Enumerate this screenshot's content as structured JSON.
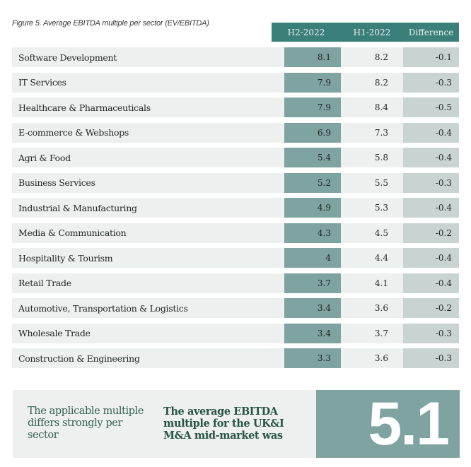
{
  "caption": "Figure 5. Average EBITDA multiple per sector (EV/EBITDA)",
  "header": {
    "h2": "H2-2022",
    "h1": "H1-2022",
    "diff": "Difference"
  },
  "colors": {
    "header_bg": "#3a7f7a",
    "h2_cell": "#7fa3a0",
    "diff_cell": "#c9d4d2",
    "row_bg": "#eef0ef",
    "panel_text": "#285445"
  },
  "rows": [
    {
      "sector": "Software Development",
      "h2": "8.1",
      "h1": "8.2",
      "diff": "-0.1"
    },
    {
      "sector": "IT Services",
      "h2": "7.9",
      "h1": "8.2",
      "diff": "-0.3"
    },
    {
      "sector": "Healthcare & Pharmaceuticals",
      "h2": "7.9",
      "h1": "8.4",
      "diff": "-0.5"
    },
    {
      "sector": "E-commerce & Webshops",
      "h2": "6.9",
      "h1": "7.3",
      "diff": "-0.4"
    },
    {
      "sector": "Agri & Food",
      "h2": "5.4",
      "h1": "5.8",
      "diff": "-0.4"
    },
    {
      "sector": "Business Services",
      "h2": "5.2",
      "h1": "5.5",
      "diff": "-0.3"
    },
    {
      "sector": "Industrial & Manufacturing",
      "h2": "4.9",
      "h1": "5.3",
      "diff": "-0.4"
    },
    {
      "sector": "Media & Communication",
      "h2": "4.3",
      "h1": "4.5",
      "diff": "-0.2"
    },
    {
      "sector": "Hospitality & Tourism",
      "h2": "4",
      "h1": "4.4",
      "diff": "-0.4"
    },
    {
      "sector": "Retail Trade",
      "h2": "3.7",
      "h1": "4.1",
      "diff": "-0.4"
    },
    {
      "sector": "Automotive, Transportation & Logistics",
      "h2": "3.4",
      "h1": "3.6",
      "diff": "-0.2"
    },
    {
      "sector": "Wholesale Trade",
      "h2": "3.4",
      "h1": "3.7",
      "diff": "-0.3"
    },
    {
      "sector": "Construction & Engineering",
      "h2": "3.3",
      "h1": "3.6",
      "diff": "-0.3"
    }
  ],
  "panel": {
    "left_text": "The applicable multiple differs strongly per sector",
    "mid_text": "The average EBITDA multiple for the UK&I M&A mid-market was",
    "value": "5.1"
  },
  "chart_data": {
    "type": "table",
    "title": "Figure 5. Average EBITDA multiple per sector (EV/EBITDA)",
    "columns": [
      "Sector",
      "H2-2022",
      "H1-2022",
      "Difference"
    ],
    "categories": [
      "Software Development",
      "IT Services",
      "Healthcare & Pharmaceuticals",
      "E-commerce & Webshops",
      "Agri & Food",
      "Business Services",
      "Industrial & Manufacturing",
      "Media & Communication",
      "Hospitality & Tourism",
      "Retail Trade",
      "Automotive, Transportation & Logistics",
      "Wholesale Trade",
      "Construction & Engineering"
    ],
    "series": [
      {
        "name": "H2-2022",
        "values": [
          8.1,
          7.9,
          7.9,
          6.9,
          5.4,
          5.2,
          4.9,
          4.3,
          4,
          3.7,
          3.4,
          3.4,
          3.3
        ]
      },
      {
        "name": "H1-2022",
        "values": [
          8.2,
          8.2,
          8.4,
          7.3,
          5.8,
          5.5,
          5.3,
          4.5,
          4.4,
          4.1,
          3.6,
          3.7,
          3.6
        ]
      },
      {
        "name": "Difference",
        "values": [
          -0.1,
          -0.3,
          -0.5,
          -0.4,
          -0.4,
          -0.3,
          -0.4,
          -0.2,
          -0.4,
          -0.4,
          -0.2,
          -0.3,
          -0.3
        ]
      }
    ],
    "summary": {
      "label": "The average EBITDA multiple for the UK&I M&A mid-market was",
      "value": 5.1
    }
  }
}
